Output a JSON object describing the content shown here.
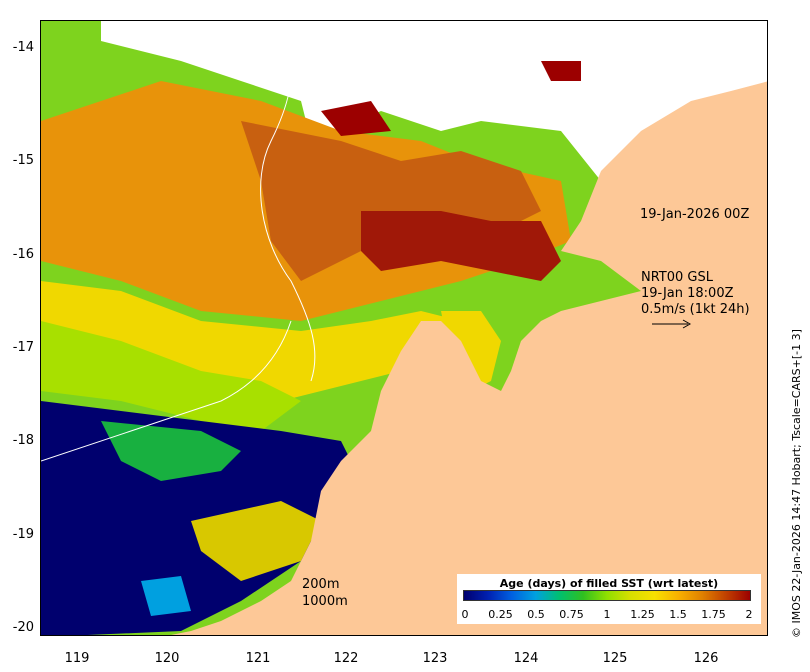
{
  "map": {
    "y_ticks": [
      "-14",
      "-15",
      "-16",
      "-17",
      "-18",
      "-19",
      "-20"
    ],
    "x_ticks": [
      "119",
      "120",
      "121",
      "122",
      "123",
      "124",
      "125",
      "126"
    ],
    "land_color": "#fdc897",
    "missing_color": "#ffffff"
  },
  "annotations": {
    "swath_time": "19-Jan-2026 00Z",
    "current_product": "NRT00 GSL",
    "current_time": "19-Jan 18:00Z",
    "current_scale": "0.5m/s (1kt 24h)",
    "contour_200": "200m",
    "contour_1000": "1000m"
  },
  "legend": {
    "title": "Age (days) of filled SST (wrt latest)",
    "ticks": [
      "0",
      "0.25",
      "0.5",
      "0.75",
      "1",
      "1.25",
      "1.5",
      "1.75",
      "2"
    ],
    "colors": [
      "#00006e",
      "#0020b0",
      "#0060e0",
      "#00a0e0",
      "#00c070",
      "#30c020",
      "#90e000",
      "#d8e000",
      "#f8e000",
      "#f8b000",
      "#e08000",
      "#c04000",
      "#9c0000"
    ]
  },
  "credit": "© IMOS 22-Jan-2026 14:47 Hobart; Tscale=CARS+[-1 3]"
}
